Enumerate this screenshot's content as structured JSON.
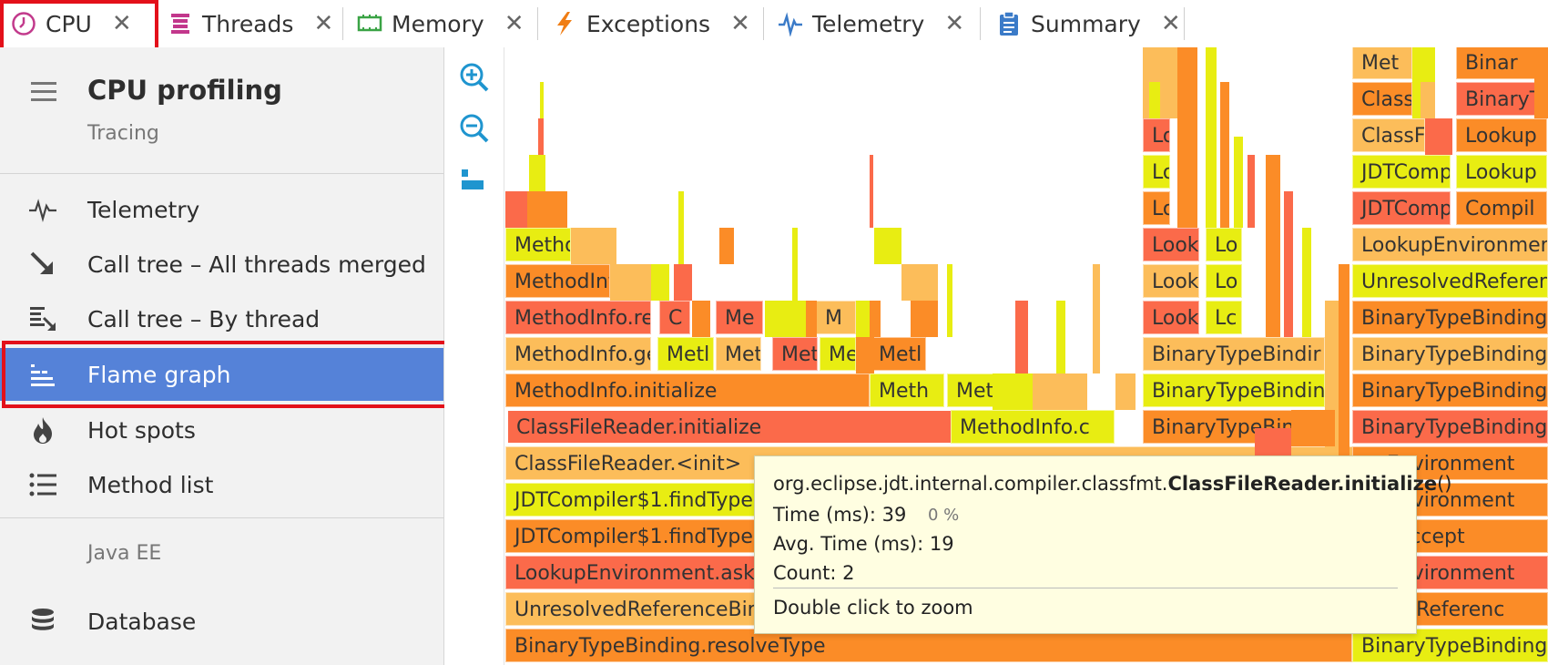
{
  "tabs": [
    {
      "label": "CPU",
      "icon": "clock-icon"
    },
    {
      "label": "Threads",
      "icon": "threads-icon"
    },
    {
      "label": "Memory",
      "icon": "memory-chip-icon"
    },
    {
      "label": "Exceptions",
      "icon": "lightning-icon"
    },
    {
      "label": "Telemetry",
      "icon": "pulse-icon"
    },
    {
      "label": "Summary",
      "icon": "clipboard-icon"
    }
  ],
  "tab_close_glyph": "✕",
  "sidebar": {
    "title": "CPU profiling",
    "subtitle": "Tracing",
    "items": [
      {
        "label": "Telemetry",
        "icon": "pulse-icon"
      },
      {
        "label": "Call tree – All threads merged",
        "icon": "arrow-down-right-icon"
      },
      {
        "label": "Call tree – By thread",
        "icon": "call-tree-by-thread-icon"
      },
      {
        "label": "Flame graph",
        "icon": "flame-graph-icon",
        "active": true
      },
      {
        "label": "Hot spots",
        "icon": "flame-icon"
      },
      {
        "label": "Method list",
        "icon": "list-icon"
      }
    ],
    "section_label": "Java EE",
    "section_items": [
      {
        "label": "Database",
        "icon": "database-icon"
      }
    ]
  },
  "toolbar": {
    "buttons": [
      "zoom-in-icon",
      "zoom-out-icon",
      "reset-zoom-icon"
    ]
  },
  "flame": {
    "main_frames": [
      "Method",
      "MethodInfo.c",
      "MethodInfo.re",
      "MethodInfo.ge",
      "MethodInfo.initialize",
      "ClassFileReader.initialize",
      "ClassFileReader.<init>",
      "JDTCompiler$1.findType",
      "JDTCompiler$1.findType",
      "LookupEnvironment.askFo",
      "UnresolvedReferenceBindi",
      "BinaryTypeBinding.resolveType"
    ],
    "small_frames": [
      "C",
      "Me",
      "M",
      "Metl",
      "Met",
      "Met",
      "Me",
      "Metl",
      "Meth",
      "Met",
      "MethodInfo.c"
    ],
    "mid_frames": [
      "Lo",
      "Lo",
      "Lo",
      "Look",
      "Lo",
      "Look",
      "Lo",
      "Look",
      "Lc",
      "BinaryTypeBindir",
      "BinaryTypeBindin",
      "BinaryTypeBinding.c"
    ],
    "right_frames": [
      "Met",
      "Binar",
      "Class",
      "BinaryT",
      "ClassF",
      "Lookup",
      "JDTComp",
      "Lookup",
      "JDTComp",
      "Compil",
      "LookupEnvironmen",
      "UnresolvedReferen",
      "BinaryTypeBinding.",
      "BinaryTypeBinding.",
      "BinaryTypeBinding.",
      "BinaryTypeBinding.",
      "upEnvironment",
      "upEnvironment",
      "iler.accept",
      "upEnvironment",
      "olvedReferenc",
      "BinaryTypeBinding.r"
    ]
  },
  "tooltip": {
    "pkg": "org.eclipse.jdt.internal.compiler.classfmt.",
    "cls": "ClassFileReader.initialize",
    "suffix": "()",
    "time": "Time (ms): 39",
    "percent": "0 %",
    "avg": "Avg. Time (ms): 19",
    "count": "Count: 2",
    "hint": "Double click to zoom"
  },
  "colors": {
    "accent": "#5582d8",
    "highlight": "#e3101a",
    "orange": "#fb8c27",
    "red": "#fb6a4a",
    "yellow": "#e8ed12",
    "peach": "#fcbd5a",
    "tooltip_bg": "#fffee1"
  }
}
